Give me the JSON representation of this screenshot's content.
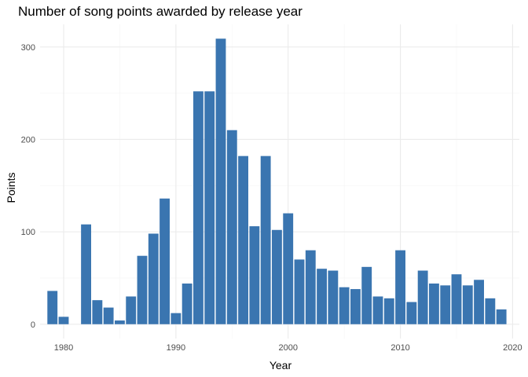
{
  "chart_data": {
    "type": "bar",
    "title": "Number of song points awarded by release year",
    "xlabel": "Year",
    "ylabel": "Points",
    "bar_color": "#3a75b0",
    "grid": true,
    "legend": "none",
    "xlim": [
      1977.9,
      2020.6
    ],
    "ylim": [
      -15.5,
      324.5
    ],
    "x_ticks": [
      1980,
      1990,
      2000,
      2010,
      2020
    ],
    "y_ticks": [
      0,
      100,
      200,
      300
    ],
    "x": [
      1979,
      1980,
      1982,
      1983,
      1984,
      1985,
      1986,
      1987,
      1988,
      1989,
      1990,
      1991,
      1992,
      1993,
      1994,
      1995,
      1996,
      1997,
      1998,
      1999,
      2000,
      2001,
      2002,
      2003,
      2004,
      2005,
      2006,
      2007,
      2008,
      2009,
      2010,
      2011,
      2012,
      2013,
      2014,
      2015,
      2016,
      2017,
      2018,
      2019
    ],
    "values": [
      36,
      8,
      108,
      26,
      18,
      4,
      30,
      74,
      98,
      136,
      12,
      44,
      252,
      252,
      309,
      210,
      182,
      106,
      182,
      102,
      120,
      70,
      80,
      60,
      58,
      40,
      38,
      62,
      30,
      28,
      80,
      24,
      58,
      44,
      42,
      54,
      42,
      48,
      28,
      16
    ]
  }
}
